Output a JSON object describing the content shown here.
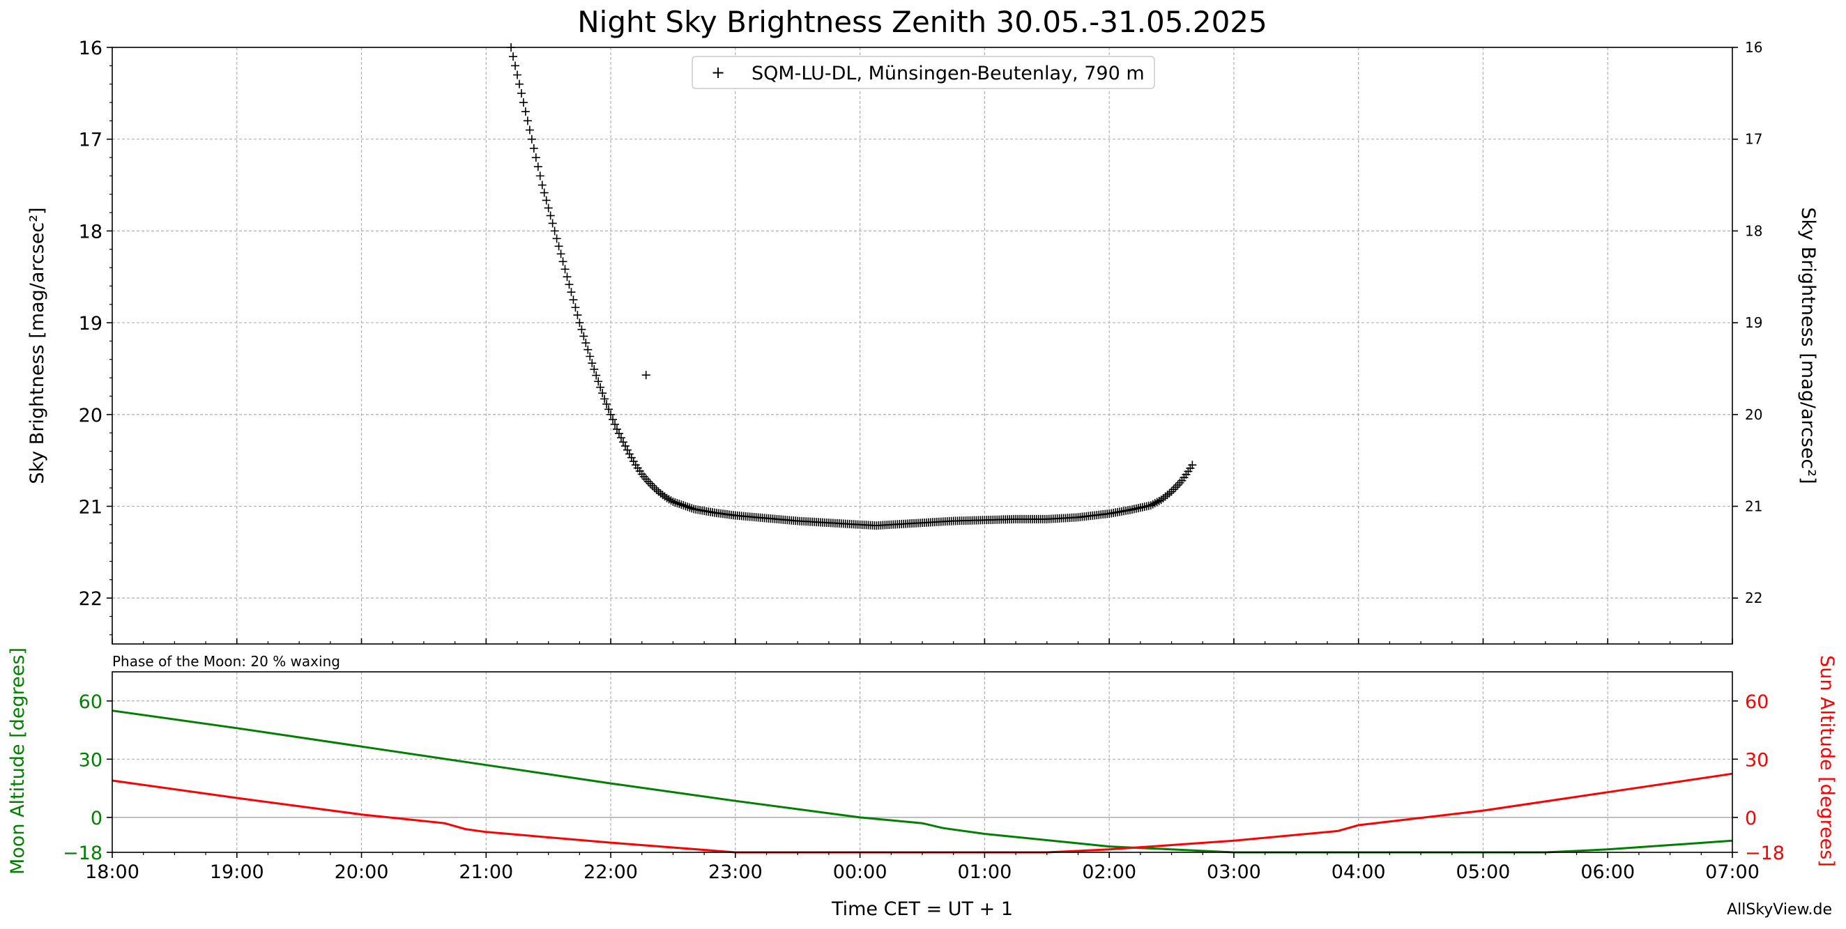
{
  "chart_data": [
    {
      "type": "scatter",
      "title": "Night Sky Brightness Zenith 30.05.-31.05.2025",
      "ylabel": "Sky Brightness [mag/arcsec²]",
      "ylabel_right": "Sky Brightness [mag/arcsec²]",
      "ylim": [
        22.5,
        16
      ],
      "y_inverted": true,
      "yticks": [
        "16",
        "17",
        "18",
        "19",
        "20",
        "21",
        "22"
      ],
      "xlim": [
        "18:00",
        "07:00"
      ],
      "grid": true,
      "legend_position": "top-center",
      "series": [
        {
          "name": "SQM-LU-DL, Münsingen-Beutenlay, 790 m",
          "marker": "+",
          "color": "#000000",
          "points": [
            [
              "21:12",
              16.0
            ],
            [
              "21:15",
              16.3
            ],
            [
              "21:18",
              16.6
            ],
            [
              "21:21",
              16.9
            ],
            [
              "21:24",
              17.2
            ],
            [
              "21:27",
              17.5
            ],
            [
              "21:30",
              17.75
            ],
            [
              "21:33",
              18.0
            ],
            [
              "21:36",
              18.25
            ],
            [
              "21:39",
              18.5
            ],
            [
              "21:42",
              18.75
            ],
            [
              "21:45",
              19.0
            ],
            [
              "21:48",
              19.22
            ],
            [
              "21:51",
              19.44
            ],
            [
              "21:54",
              19.64
            ],
            [
              "21:57",
              19.83
            ],
            [
              "22:00",
              20.0
            ],
            [
              "22:03",
              20.16
            ],
            [
              "22:06",
              20.3
            ],
            [
              "22:09",
              20.43
            ],
            [
              "22:12",
              20.55
            ],
            [
              "22:15",
              20.65
            ],
            [
              "22:18",
              20.73
            ],
            [
              "22:21",
              20.8
            ],
            [
              "22:24",
              20.86
            ],
            [
              "22:27",
              20.91
            ],
            [
              "22:30",
              20.95
            ],
            [
              "22:40",
              21.03
            ],
            [
              "22:50",
              21.07
            ],
            [
              "23:00",
              21.1
            ],
            [
              "23:15",
              21.13
            ],
            [
              "23:30",
              21.16
            ],
            [
              "23:45",
              21.18
            ],
            [
              "00:00",
              21.2
            ],
            [
              "00:08",
              21.21
            ],
            [
              "00:15",
              21.2
            ],
            [
              "00:30",
              21.18
            ],
            [
              "00:45",
              21.16
            ],
            [
              "01:00",
              21.15
            ],
            [
              "01:15",
              21.14
            ],
            [
              "01:30",
              21.14
            ],
            [
              "01:45",
              21.12
            ],
            [
              "02:00",
              21.08
            ],
            [
              "02:10",
              21.04
            ],
            [
              "02:20",
              20.99
            ],
            [
              "02:25",
              20.93
            ],
            [
              "02:30",
              20.84
            ],
            [
              "02:35",
              20.72
            ],
            [
              "02:38",
              20.62
            ],
            [
              "02:40",
              20.55
            ],
            [
              "22:17",
              19.57
            ]
          ]
        }
      ]
    },
    {
      "type": "line",
      "annotation": "Phase of the Moon: 20 % waxing",
      "xlabel": "Time CET = UT + 1",
      "ylabel_left": "Moon Altitude [degrees]",
      "ylabel_right": "Sun Altitude [degrees]",
      "ylim": [
        -18,
        75
      ],
      "yticks": [
        "60",
        "30",
        "0",
        "−18"
      ],
      "xticks": [
        "18:00",
        "19:00",
        "20:00",
        "21:00",
        "22:00",
        "23:00",
        "00:00",
        "01:00",
        "02:00",
        "03:00",
        "04:00",
        "05:00",
        "06:00",
        "07:00"
      ],
      "grid": true,
      "series": [
        {
          "name": "Moon Altitude",
          "color": "#008000",
          "points": [
            [
              "18:00",
              55
            ],
            [
              "19:00",
              46
            ],
            [
              "20:00",
              36.5
            ],
            [
              "21:00",
              27
            ],
            [
              "22:00",
              17.5
            ],
            [
              "23:00",
              8.5
            ],
            [
              "00:00",
              0
            ],
            [
              "00:30",
              -3
            ],
            [
              "00:40",
              -5.5
            ],
            [
              "01:00",
              -8.5
            ],
            [
              "02:00",
              -15
            ],
            [
              "03:00",
              -18
            ],
            [
              "05:30",
              -18
            ],
            [
              "06:00",
              -16.5
            ],
            [
              "07:00",
              -12
            ]
          ]
        },
        {
          "name": "Sun Altitude",
          "color": "#ff0000",
          "points": [
            [
              "18:00",
              19
            ],
            [
              "19:00",
              10
            ],
            [
              "20:00",
              1.5
            ],
            [
              "20:40",
              -3
            ],
            [
              "20:50",
              -6
            ],
            [
              "21:00",
              -7.5
            ],
            [
              "22:00",
              -13
            ],
            [
              "23:00",
              -18
            ],
            [
              "01:30",
              -18
            ],
            [
              "02:00",
              -16.5
            ],
            [
              "03:00",
              -12
            ],
            [
              "03:50",
              -7
            ],
            [
              "04:00",
              -4
            ],
            [
              "05:00",
              3.5
            ],
            [
              "06:00",
              13
            ],
            [
              "07:00",
              22.5
            ]
          ]
        }
      ]
    }
  ],
  "footer": {
    "credit": "AllSkyView.de"
  }
}
